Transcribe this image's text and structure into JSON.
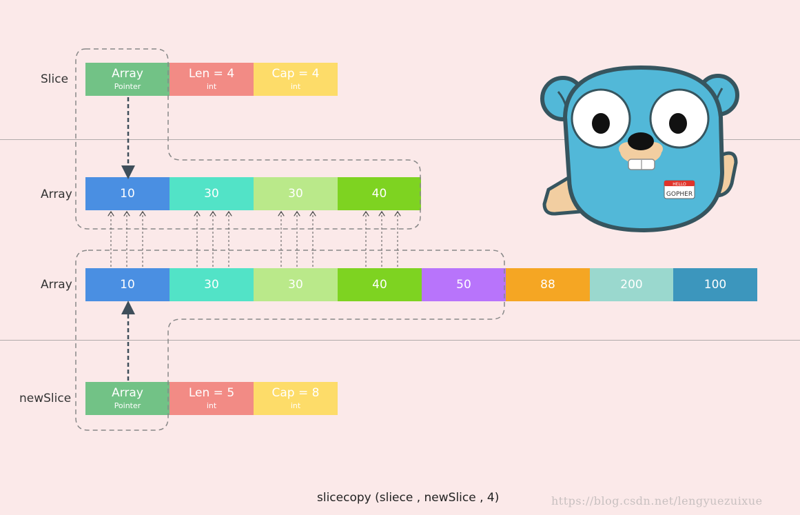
{
  "labels": {
    "slice": "Slice",
    "array_top": "Array",
    "array_bottom": "Array",
    "new_slice": "newSlice"
  },
  "slice": {
    "array": "Array",
    "array_sub": "Pointer",
    "len": "Len = 4",
    "len_sub": "int",
    "cap": "Cap = 4",
    "cap_sub": "int"
  },
  "new_slice": {
    "array": "Array",
    "array_sub": "Pointer",
    "len": "Len = 5",
    "len_sub": "int",
    "cap": "Cap = 8",
    "cap_sub": "int"
  },
  "array_top": [
    "10",
    "30",
    "30",
    "40"
  ],
  "array_bottom": [
    "10",
    "30",
    "30",
    "40",
    "50",
    "88",
    "200",
    "100"
  ],
  "colors": {
    "background": "#fbe9e9",
    "pointer": "#72c286",
    "len": "#f28b85",
    "cap": "#fddc69",
    "cells": [
      "#4a8fe2",
      "#52e3c7",
      "#bae98a",
      "#7ed321",
      "#b874fb",
      "#f5a623",
      "#9ad8ce",
      "#3c96bd"
    ],
    "gopher_body": "#52b8d8",
    "gopher_outline": "#36555f",
    "gopher_skin": "#f2cea1"
  },
  "gopher": {
    "badge_top": "HELLO",
    "badge_name": "GOPHER"
  },
  "caption": "slicecopy (sliece , newSlice , 4)",
  "watermark": "https://blog.csdn.net/lengyuezuixue"
}
